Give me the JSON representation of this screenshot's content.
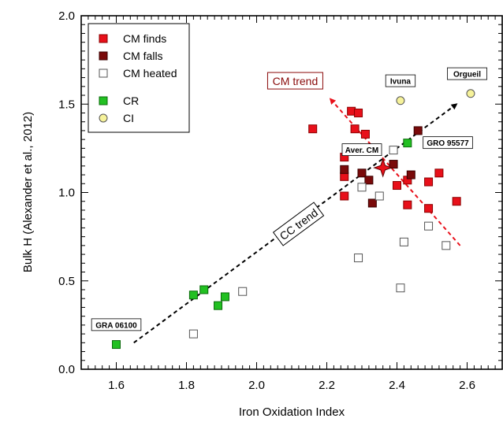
{
  "chart_data": {
    "type": "scatter",
    "xlabel": "Iron Oxidation Index",
    "ylabel": "Bulk H (Alexander et al., 2012)",
    "xlim": [
      1.5,
      2.7
    ],
    "ylim": [
      0.0,
      2.0
    ],
    "xticks": [
      "1.6",
      "1.8",
      "2.0",
      "2.2",
      "2.4",
      "2.6"
    ],
    "yticks": [
      "0.0",
      "0.5",
      "1.0",
      "1.5",
      "2.0"
    ],
    "legend_position": "top-left",
    "series": [
      {
        "name": "CM finds",
        "marker": "square",
        "fill": "#e8101a",
        "stroke": "#8a0000",
        "points": [
          [
            2.16,
            1.36
          ],
          [
            2.27,
            1.46
          ],
          [
            2.29,
            1.45
          ],
          [
            2.28,
            1.36
          ],
          [
            2.31,
            1.33
          ],
          [
            2.25,
            1.2
          ],
          [
            2.25,
            1.09
          ],
          [
            2.25,
            0.98
          ],
          [
            2.4,
            1.04
          ],
          [
            2.43,
            0.93
          ],
          [
            2.43,
            1.07
          ],
          [
            2.49,
            1.06
          ],
          [
            2.49,
            0.91
          ],
          [
            2.52,
            1.11
          ],
          [
            2.57,
            0.95
          ]
        ]
      },
      {
        "name": "CM falls",
        "marker": "square",
        "fill": "#7a0a0a",
        "stroke": "#3a0000",
        "points": [
          [
            2.25,
            1.13
          ],
          [
            2.3,
            1.11
          ],
          [
            2.32,
            1.07
          ],
          [
            2.33,
            0.94
          ],
          [
            2.39,
            1.16
          ],
          [
            2.44,
            1.1
          ],
          [
            2.46,
            1.35
          ]
        ]
      },
      {
        "name": "CM heated",
        "marker": "square",
        "fill": "#ffffff",
        "stroke": "#555555",
        "points": [
          [
            1.82,
            0.2
          ],
          [
            1.96,
            0.44
          ],
          [
            2.29,
            0.63
          ],
          [
            2.3,
            1.03
          ],
          [
            2.35,
            0.98
          ],
          [
            2.39,
            1.24
          ],
          [
            2.41,
            0.46
          ],
          [
            2.42,
            0.72
          ],
          [
            2.49,
            0.81
          ],
          [
            2.54,
            0.7
          ]
        ]
      },
      {
        "name": "CR",
        "marker": "square",
        "fill": "#22c022",
        "stroke": "#0a6a0a",
        "points": [
          [
            1.6,
            0.14
          ],
          [
            1.82,
            0.42
          ],
          [
            1.85,
            0.45
          ],
          [
            1.89,
            0.36
          ],
          [
            1.91,
            0.41
          ],
          [
            2.43,
            1.28
          ]
        ]
      },
      {
        "name": "CI",
        "marker": "circle",
        "fill": "#f6f29a",
        "stroke": "#555555",
        "points": [
          [
            2.41,
            1.52
          ],
          [
            2.61,
            1.56
          ]
        ]
      }
    ],
    "average_point": {
      "label": "Aver. CM",
      "x": 2.36,
      "y": 1.14,
      "marker": "star",
      "fill": "#e8101a"
    },
    "trends": [
      {
        "label": "CC trend",
        "from": [
          1.65,
          0.15
        ],
        "to": [
          2.57,
          1.5
        ],
        "color": "#000000"
      },
      {
        "label": "CM trend",
        "from": [
          2.58,
          0.7
        ],
        "to": [
          2.21,
          1.53
        ],
        "color": "#e8101a"
      }
    ],
    "annotations": [
      {
        "text": "GRA 06100",
        "x": 1.6,
        "y": 0.14
      },
      {
        "text": "Ivuna",
        "x": 2.41,
        "y": 1.52
      },
      {
        "text": "Orgueil",
        "x": 2.61,
        "y": 1.56
      },
      {
        "text": "GRO 95577",
        "x": 2.43,
        "y": 1.28
      }
    ]
  }
}
